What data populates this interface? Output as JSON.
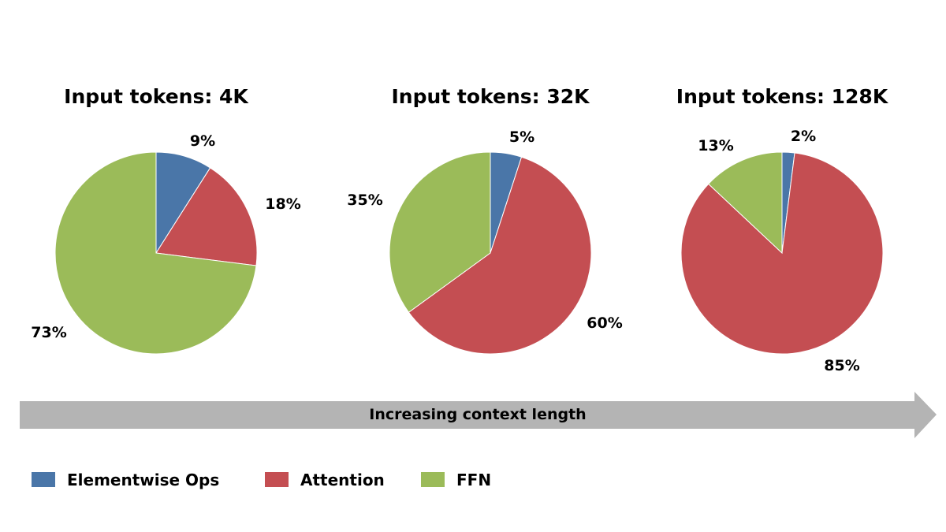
{
  "chart_data": [
    {
      "type": "pie",
      "title": "Input tokens: 4K",
      "categories": [
        "Elementwise Ops",
        "Attention",
        "FFN"
      ],
      "values": [
        9,
        18,
        73
      ],
      "labels": [
        "9%",
        "18%",
        "73%"
      ]
    },
    {
      "type": "pie",
      "title": "Input tokens: 32K",
      "categories": [
        "Elementwise Ops",
        "Attention",
        "FFN"
      ],
      "values": [
        5,
        60,
        35
      ],
      "labels": [
        "5%",
        "60%",
        "35%"
      ]
    },
    {
      "type": "pie",
      "title": "Input tokens: 128K",
      "categories": [
        "Elementwise Ops",
        "Attention",
        "FFN"
      ],
      "values": [
        2,
        85,
        13
      ],
      "labels": [
        "2%",
        "85%",
        "13%"
      ]
    }
  ],
  "arrow": {
    "label": "Increasing context length",
    "color": "#b4b4b4"
  },
  "legend": {
    "placement": "bottom-left",
    "entries": [
      {
        "name": "Elementwise Ops",
        "color": "#4a76a8"
      },
      {
        "name": "Attention",
        "color": "#c44e52"
      },
      {
        "name": "FFN",
        "color": "#9bbb59"
      }
    ]
  }
}
